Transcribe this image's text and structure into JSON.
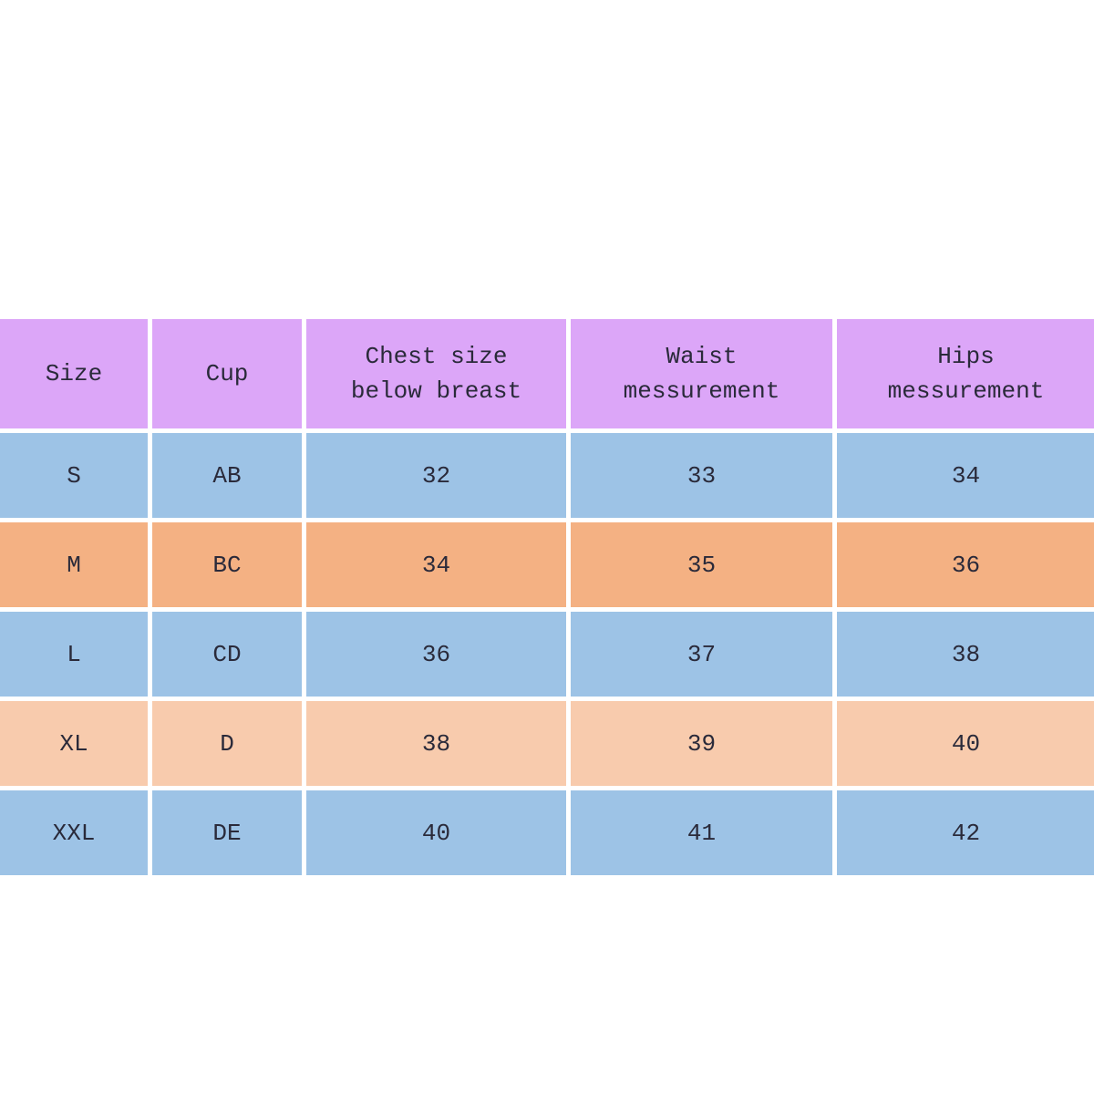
{
  "table": {
    "headers": [
      "Size",
      "Cup",
      "Chest  size\nbelow breast",
      "Waist\nmessurement",
      "Hips\nmessurement"
    ],
    "rows": [
      [
        "S",
        "AB",
        "32",
        "33",
        "34"
      ],
      [
        "M",
        "BC",
        "34",
        "35",
        "36"
      ],
      [
        "L",
        "CD",
        "36",
        "37",
        "38"
      ],
      [
        "XL",
        "D",
        "38",
        "39",
        "40"
      ],
      [
        "XXL",
        "DE",
        "40",
        "41",
        "42"
      ]
    ],
    "colors": {
      "header": "#dca6f8",
      "row_blue": "#9dc3e6",
      "row_orange": "#f4b183",
      "row_peach": "#f8cbad"
    }
  }
}
